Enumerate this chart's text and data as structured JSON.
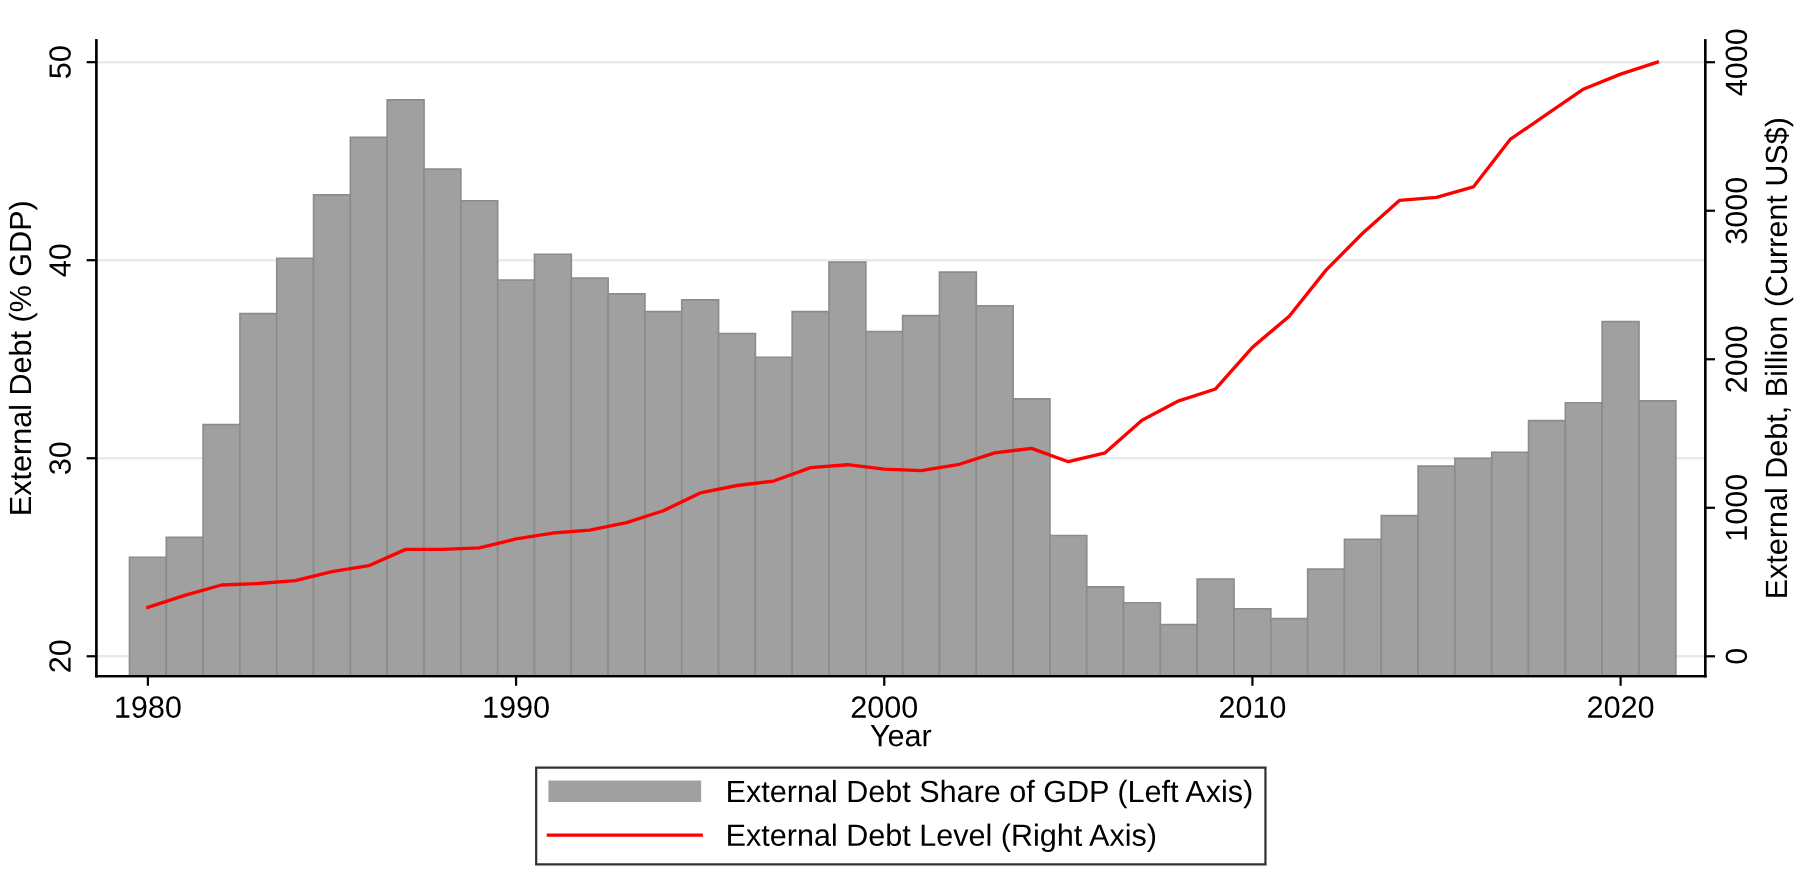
{
  "chart_data": {
    "type": "bar",
    "xlabel": "Year",
    "ylabel": "External Debt (% GDP)",
    "y2label": "External Debt, Billion (Current US$)",
    "x": [
      1980,
      1981,
      1982,
      1983,
      1984,
      1985,
      1986,
      1987,
      1988,
      1989,
      1990,
      1991,
      1992,
      1993,
      1994,
      1995,
      1996,
      1997,
      1998,
      1999,
      2000,
      2001,
      2002,
      2003,
      2004,
      2005,
      2006,
      2007,
      2008,
      2009,
      2010,
      2011,
      2012,
      2013,
      2014,
      2015,
      2016,
      2017,
      2018,
      2019,
      2020,
      2021
    ],
    "series": [
      {
        "name": "External Debt Share of GDP (Left Axis)",
        "color": "#a0a0a0",
        "values": [
          25.0,
          26.0,
          31.7,
          37.3,
          40.1,
          43.3,
          46.2,
          48.1,
          44.6,
          43.0,
          39.0,
          40.3,
          39.1,
          38.3,
          37.4,
          38.0,
          36.3,
          35.1,
          37.4,
          39.9,
          36.4,
          37.2,
          39.4,
          37.7,
          33.0,
          26.1,
          23.5,
          22.7,
          21.6,
          23.9,
          22.4,
          21.9,
          24.4,
          25.9,
          27.1,
          29.6,
          30.0,
          30.3,
          31.9,
          32.8,
          36.9,
          32.9
        ]
      },
      {
        "name": "External Debt Level (Right Axis)",
        "type": "line",
        "axis": "y2",
        "color": "#ff0000",
        "values": [
          330,
          410,
          480,
          490,
          510,
          570,
          610,
          720,
          720,
          730,
          790,
          830,
          850,
          900,
          980,
          1100,
          1150,
          1180,
          1270,
          1290,
          1260,
          1250,
          1290,
          1370,
          1400,
          1310,
          1370,
          1590,
          1720,
          1800,
          2080,
          2290,
          2600,
          2850,
          3070,
          3090,
          3160,
          3480,
          3650,
          3820,
          3920,
          4000
        ]
      }
    ],
    "xlim": [
      1978.6,
      2022.3
    ],
    "xticks": [
      1980,
      1990,
      2000,
      2010,
      2020
    ],
    "ylim": [
      19,
      51.1
    ],
    "yticks": [
      20,
      30,
      40,
      50
    ],
    "y2lim": [
      -133,
      4147
    ],
    "y2ticks": [
      0,
      1000,
      2000,
      3000,
      4000
    ],
    "grid": "y",
    "legend": "bottom",
    "line_style": "solid",
    "marker": "none"
  }
}
